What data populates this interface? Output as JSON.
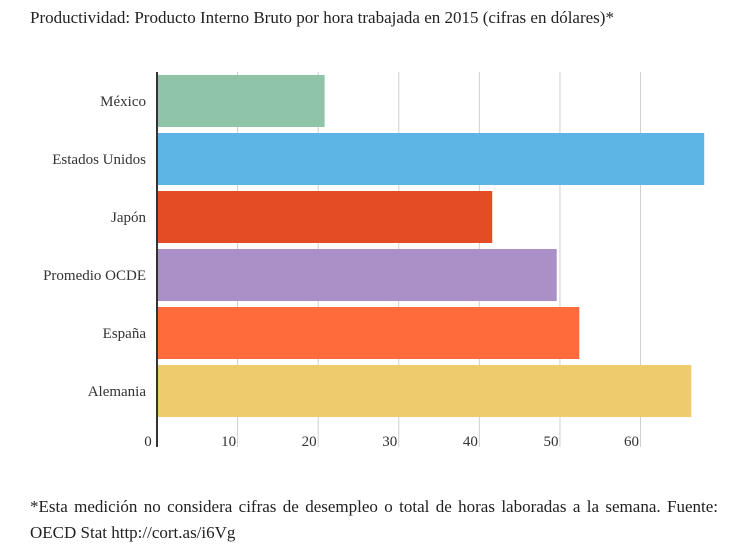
{
  "title": "Productividad: Producto Interno Bruto por hora trabajada en 2015 (cifras en dólares)*",
  "footnote": "*Esta medición no considera cifras de desempleo o total de horas laboradas a la semana. Fuente: OECD Stat http://cort.as/i6Vg",
  "chart_data": {
    "type": "bar",
    "orientation": "horizontal",
    "title": "Productividad: Producto Interno Bruto por hora trabajada en 2015 (cifras en dólares)*",
    "xlabel": "",
    "ylabel": "",
    "categories": [
      "México",
      "Estados Unidos",
      "Japón",
      "Promedio OCDE",
      "España",
      "Alemania"
    ],
    "values": [
      20.8,
      67.9,
      41.6,
      49.6,
      52.4,
      66.3
    ],
    "colors": [
      "#90c4a8",
      "#5db5e5",
      "#e44c25",
      "#ab90c8",
      "#ff6b3b",
      "#eecb6c"
    ],
    "xlim": [
      0,
      68
    ],
    "xticks": [
      0,
      10,
      20,
      30,
      40,
      50,
      60
    ],
    "grid": true,
    "legend": "none"
  }
}
